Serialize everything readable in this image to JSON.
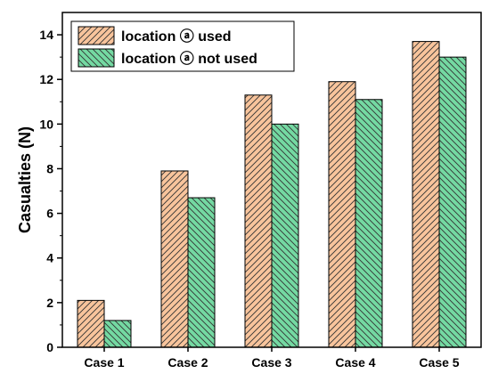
{
  "chart_data": {
    "type": "bar",
    "title": "",
    "xlabel": "",
    "ylabel": "Casualties (N)",
    "categories": [
      "Case 1",
      "Case 2",
      "Case 3",
      "Case 4",
      "Case 5"
    ],
    "series": [
      {
        "name": "location ⓐ used",
        "values": [
          2.1,
          7.9,
          11.3,
          11.9,
          13.7
        ],
        "color": "#f8c49c"
      },
      {
        "name": "location ⓐ not used",
        "values": [
          1.2,
          6.7,
          10.0,
          11.1,
          13.0
        ],
        "color": "#74d9a2"
      }
    ],
    "ylim": [
      0,
      15
    ],
    "yticks": [
      0,
      2,
      4,
      6,
      8,
      10,
      12,
      14
    ],
    "legend_position": "top-left",
    "grid": false
  }
}
